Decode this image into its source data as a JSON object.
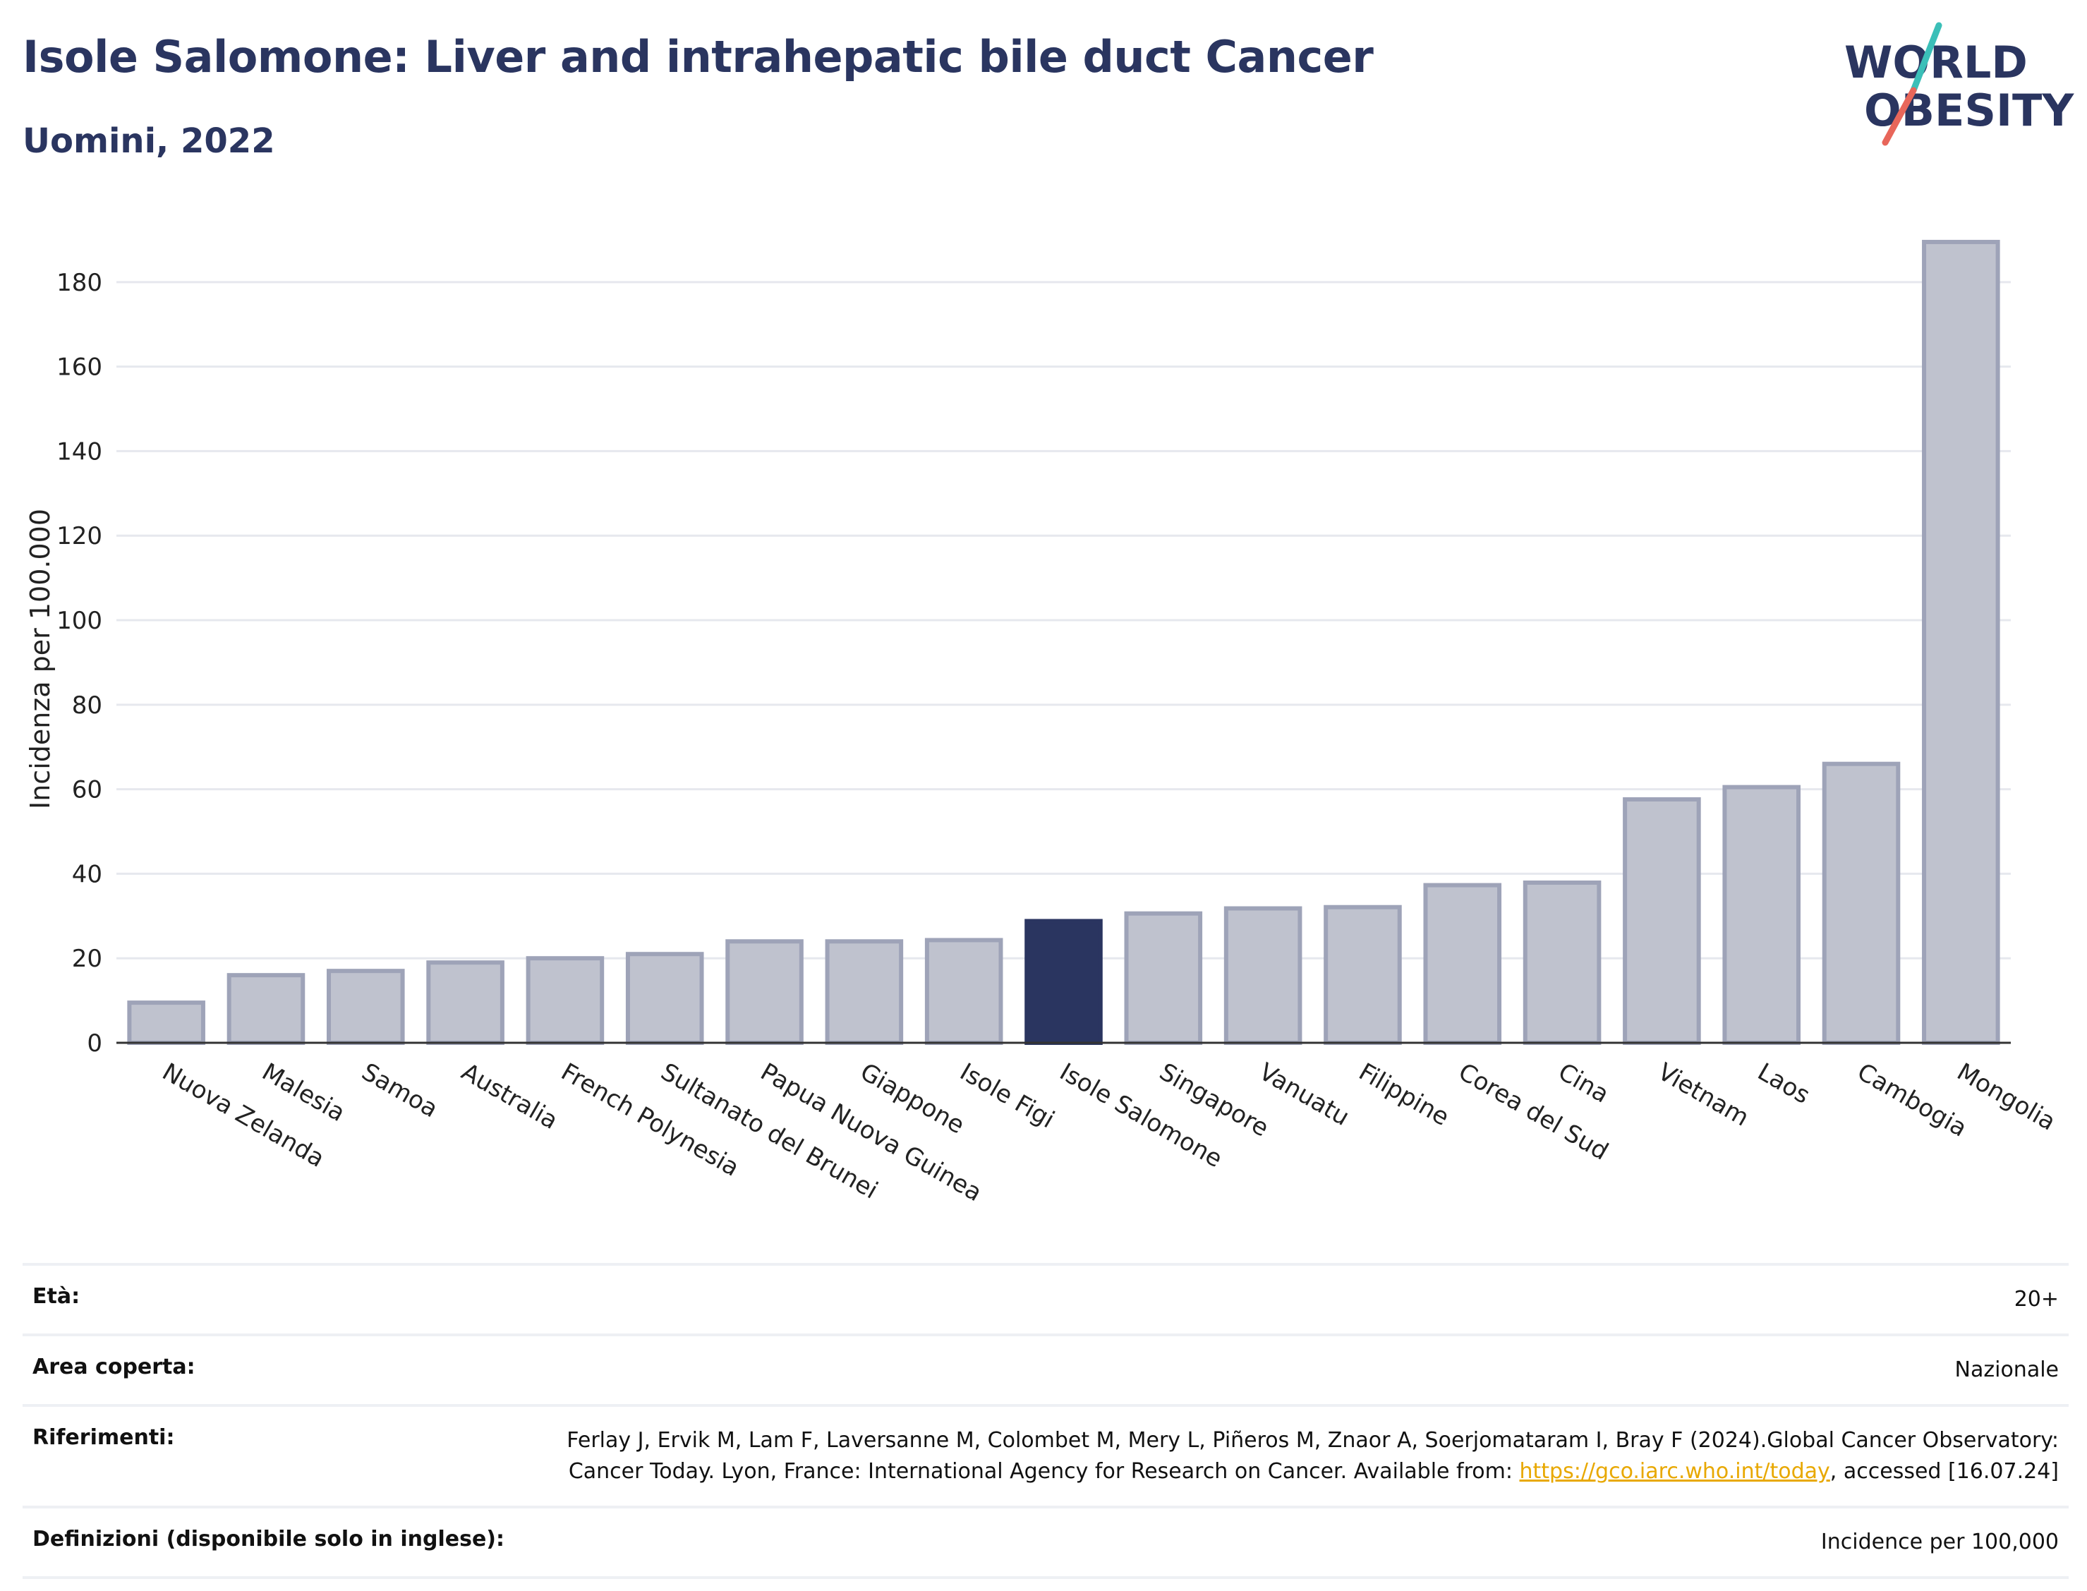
{
  "header": {
    "title": "Isole Salomone: Liver and intrahepatic bile duct Cancer",
    "subtitle": "Uomini, 2022"
  },
  "logo": {
    "line1": "WORLD",
    "line2": "OBESITY"
  },
  "chart_data": {
    "type": "bar",
    "title": "Isole Salomone: Liver and intrahepatic bile duct Cancer",
    "subtitle": "Uomini, 2022",
    "xlabel": "",
    "ylabel": "Incidenza per 100.000",
    "ylim": [
      0,
      195
    ],
    "yticks": [
      0,
      20,
      40,
      60,
      80,
      100,
      120,
      140,
      160,
      180
    ],
    "grid": true,
    "highlight": "Isole Salomone",
    "categories": [
      "Nuova Zelanda",
      "Malesia",
      "Samoa",
      "Australia",
      "French Polynesia",
      "Sultanato del Brunei",
      "Papua Nuova Guinea",
      "Giappone",
      "Isole Figi",
      "Isole Salomone",
      "Singapore",
      "Vanuatu",
      "Filippine",
      "Corea del Sud",
      "Cina",
      "Vietnam",
      "Laos",
      "Cambogia",
      "Mongolia"
    ],
    "values": [
      9.5,
      16,
      17,
      19,
      20,
      21,
      24,
      24,
      24.3,
      28.8,
      30.6,
      31.8,
      32.1,
      37.3,
      37.9,
      57.6,
      60.5,
      66,
      189.5
    ],
    "colors": {
      "bar": "#bfc2ce",
      "bar_border": "#9ea3b8",
      "highlight": "#2a3560"
    }
  },
  "info": {
    "rows": [
      {
        "label": "Età:",
        "value": "20+"
      },
      {
        "label": "Area coperta:",
        "value": "Nazionale"
      },
      {
        "label": "Riferimenti:",
        "value_pre": "Ferlay J, Ervik M, Lam F, Laversanne M, Colombet M, Mery L, Piñeros M, Znaor A, Soerjomataram I, Bray F (2024).Global Cancer Observatory: Cancer Today. Lyon, France: International Agency for Research on Cancer. Available from: ",
        "link": "https://gco.iarc.who.int/today",
        "value_post": ", accessed [16.07.24]"
      },
      {
        "label": "Definizioni (disponibile solo in inglese):",
        "value": "Incidence per 100,000"
      }
    ]
  }
}
